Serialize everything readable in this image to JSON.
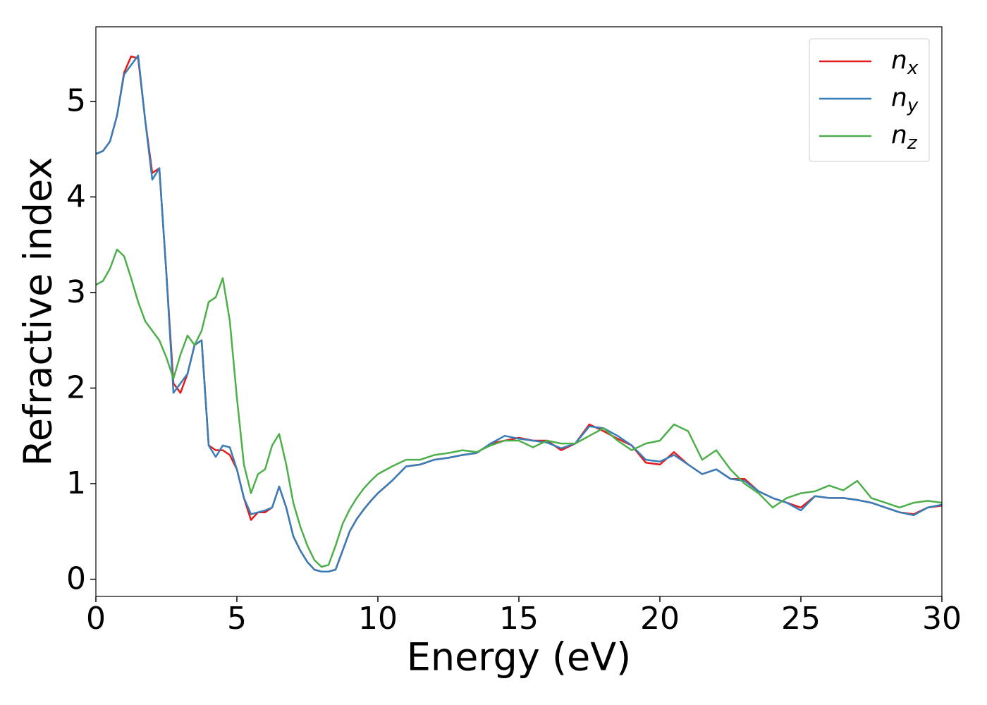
{
  "chart_data": {
    "type": "line",
    "xlabel": "Energy (eV)",
    "ylabel": "Refractive index",
    "x": [
      0,
      0.25,
      0.5,
      0.75,
      1,
      1.25,
      1.5,
      1.75,
      2,
      2.25,
      2.5,
      2.75,
      3,
      3.25,
      3.5,
      3.75,
      4,
      4.25,
      4.5,
      4.75,
      5,
      5.25,
      5.5,
      5.75,
      6,
      6.25,
      6.5,
      6.75,
      7,
      7.25,
      7.5,
      7.75,
      8,
      8.25,
      8.5,
      8.75,
      9,
      9.25,
      9.5,
      9.75,
      10,
      10.5,
      11,
      11.5,
      12,
      12.5,
      13,
      13.5,
      14,
      14.5,
      15,
      15.5,
      16,
      16.5,
      17,
      17.5,
      18,
      18.5,
      19,
      19.5,
      20,
      20.5,
      21,
      21.5,
      22,
      22.5,
      23,
      23.5,
      24,
      24.5,
      25,
      25.5,
      26,
      26.5,
      27,
      27.5,
      28,
      28.5,
      29,
      29.5,
      30
    ],
    "series": [
      {
        "name": "n_x",
        "color": "#e41a1c",
        "values": [
          4.45,
          4.48,
          4.58,
          4.85,
          5.3,
          5.47,
          5.45,
          4.8,
          4.25,
          4.3,
          3.2,
          2.05,
          1.95,
          2.15,
          2.45,
          2.5,
          1.4,
          1.35,
          1.35,
          1.3,
          1.15,
          0.85,
          0.62,
          0.7,
          0.7,
          0.75,
          0.97,
          0.75,
          0.45,
          0.3,
          0.18,
          0.1,
          0.08,
          0.08,
          0.1,
          0.3,
          0.5,
          0.63,
          0.73,
          0.82,
          0.9,
          1.03,
          1.18,
          1.2,
          1.25,
          1.27,
          1.3,
          1.32,
          1.42,
          1.45,
          1.48,
          1.45,
          1.45,
          1.35,
          1.42,
          1.62,
          1.55,
          1.47,
          1.4,
          1.22,
          1.2,
          1.33,
          1.2,
          1.1,
          1.15,
          1.05,
          1.05,
          0.92,
          0.85,
          0.8,
          0.75,
          0.87,
          0.85,
          0.85,
          0.83,
          0.8,
          0.75,
          0.7,
          0.68,
          0.75,
          0.77
        ]
      },
      {
        "name": "n_y",
        "color": "#377eb8",
        "values": [
          4.45,
          4.48,
          4.58,
          4.85,
          5.28,
          5.38,
          5.48,
          4.8,
          4.18,
          4.3,
          3.2,
          1.95,
          2.05,
          2.15,
          2.45,
          2.5,
          1.4,
          1.28,
          1.4,
          1.38,
          1.15,
          0.85,
          0.68,
          0.7,
          0.72,
          0.75,
          0.97,
          0.75,
          0.45,
          0.3,
          0.18,
          0.1,
          0.08,
          0.08,
          0.1,
          0.3,
          0.5,
          0.63,
          0.73,
          0.82,
          0.9,
          1.03,
          1.18,
          1.2,
          1.25,
          1.27,
          1.3,
          1.32,
          1.42,
          1.5,
          1.47,
          1.45,
          1.43,
          1.37,
          1.42,
          1.6,
          1.58,
          1.5,
          1.4,
          1.25,
          1.23,
          1.3,
          1.2,
          1.1,
          1.15,
          1.05,
          1.03,
          0.92,
          0.85,
          0.8,
          0.72,
          0.87,
          0.85,
          0.85,
          0.83,
          0.8,
          0.75,
          0.7,
          0.67,
          0.75,
          0.78
        ]
      },
      {
        "name": "n_z",
        "color": "#4daf4a",
        "values": [
          3.08,
          3.12,
          3.25,
          3.45,
          3.38,
          3.15,
          2.9,
          2.7,
          2.6,
          2.5,
          2.32,
          2.1,
          2.35,
          2.55,
          2.45,
          2.6,
          2.9,
          2.95,
          3.15,
          2.7,
          1.9,
          1.2,
          0.9,
          1.1,
          1.15,
          1.4,
          1.52,
          1.2,
          0.8,
          0.55,
          0.35,
          0.2,
          0.13,
          0.15,
          0.35,
          0.58,
          0.73,
          0.85,
          0.95,
          1.03,
          1.1,
          1.18,
          1.25,
          1.25,
          1.3,
          1.32,
          1.35,
          1.33,
          1.4,
          1.45,
          1.45,
          1.38,
          1.45,
          1.42,
          1.42,
          1.5,
          1.58,
          1.45,
          1.35,
          1.42,
          1.45,
          1.62,
          1.55,
          1.25,
          1.35,
          1.15,
          1.0,
          0.9,
          0.75,
          0.85,
          0.9,
          0.92,
          0.98,
          0.93,
          1.03,
          0.85,
          0.8,
          0.75,
          0.8,
          0.82,
          0.8
        ]
      }
    ],
    "xlim": [
      0,
      30
    ],
    "xticks": [
      0,
      5,
      10,
      15,
      20,
      25,
      30
    ],
    "ylim": [
      -0.18,
      5.78
    ],
    "yticks": [
      0,
      1,
      2,
      3,
      4,
      5
    ],
    "grid": false,
    "legend": "upper right"
  }
}
